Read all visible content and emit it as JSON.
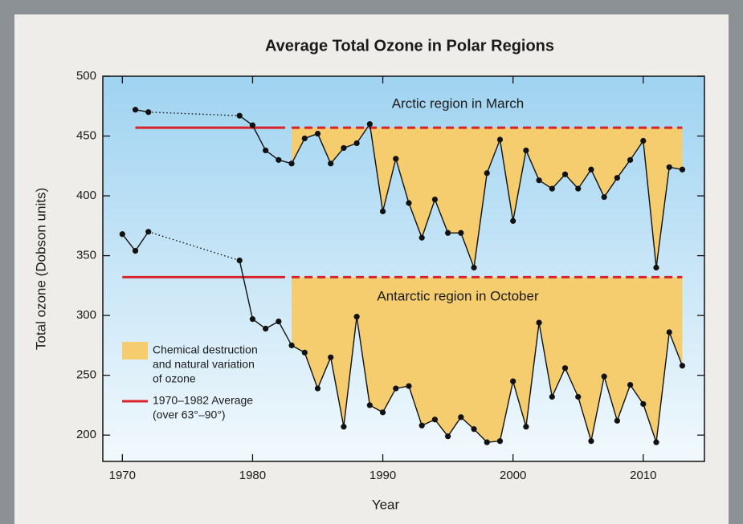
{
  "chart_data": {
    "type": "line",
    "title": "Average Total Ozone in Polar Regions",
    "xlabel": "Year",
    "ylabel": "Total ozone (Dobson units)",
    "xlim": [
      1968.5,
      2014.7
    ],
    "xticks": [
      1970,
      1980,
      1990,
      2000,
      2010
    ],
    "ylim": [
      178,
      500
    ],
    "yticks": [
      200,
      250,
      300,
      350,
      400,
      450,
      500
    ],
    "baseline_period": [
      1970,
      1982
    ],
    "fill_color": "#f5cd6e",
    "average_color": "#d9232a",
    "legend": {
      "fill": [
        "Chemical destruction",
        "and natural variation",
        "of ozone"
      ],
      "average": [
        "1970–1982 Average",
        "(over 63°–90°)"
      ]
    },
    "series": [
      {
        "name": "Arctic region in March",
        "color": "#111111",
        "average": 457,
        "x": [
          1971,
          1972,
          1979,
          1980,
          1981,
          1982,
          1983,
          1984,
          1985,
          1986,
          1987,
          1988,
          1989,
          1990,
          1991,
          1992,
          1993,
          1994,
          1995,
          1996,
          1997,
          1998,
          1999,
          2000,
          2001,
          2002,
          2003,
          2004,
          2005,
          2006,
          2007,
          2008,
          2009,
          2010,
          2011,
          2012,
          2013
        ],
        "values": [
          472,
          470,
          467,
          459,
          438,
          430,
          427,
          448,
          452,
          427,
          440,
          444,
          460,
          387,
          431,
          394,
          365,
          397,
          369,
          369,
          340,
          419,
          447,
          379,
          438,
          413,
          406,
          418,
          406,
          422,
          399,
          415,
          430,
          446,
          340,
          424,
          422
        ]
      },
      {
        "name": "Antarctic region in October",
        "color": "#111111",
        "average": 332,
        "x": [
          1970,
          1971,
          1972,
          1979,
          1980,
          1981,
          1982,
          1983,
          1984,
          1985,
          1986,
          1987,
          1988,
          1989,
          1990,
          1991,
          1992,
          1993,
          1994,
          1995,
          1996,
          1997,
          1998,
          1999,
          2000,
          2001,
          2002,
          2003,
          2004,
          2005,
          2006,
          2007,
          2008,
          2009,
          2010,
          2011,
          2012,
          2013
        ],
        "values": [
          368,
          354,
          370,
          346,
          297,
          289,
          295,
          275,
          269,
          239,
          265,
          207,
          299,
          225,
          219,
          239,
          241,
          208,
          213,
          199,
          215,
          205,
          194,
          195,
          245,
          207,
          294,
          232,
          256,
          232,
          195,
          249,
          212,
          242,
          226,
          194,
          286,
          258
        ]
      }
    ]
  }
}
